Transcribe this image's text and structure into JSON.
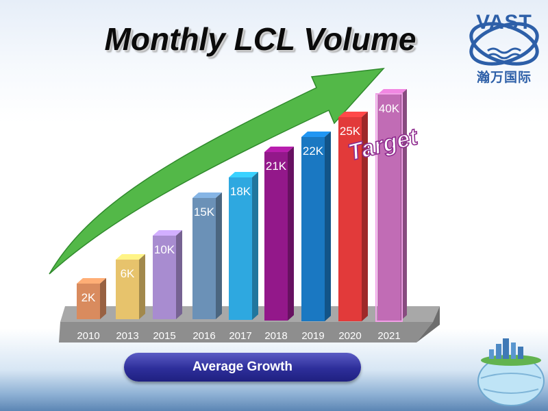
{
  "title": "Monthly LCL Volume",
  "logo": {
    "text": "VAST",
    "subtitle": "瀚万国际"
  },
  "footer_button": "Average Growth",
  "chart_data": {
    "type": "bar",
    "title": "Monthly LCL Volume",
    "categories": [
      "2010",
      "2013",
      "2015",
      "2016",
      "2017",
      "2018",
      "2019",
      "2020",
      "2021"
    ],
    "values": [
      2,
      6,
      10,
      15,
      18,
      21,
      22,
      25,
      40
    ],
    "value_labels": [
      "2K",
      "6K",
      "10K",
      "15K",
      "18K",
      "21K",
      "22K",
      "25K",
      "40K"
    ],
    "unit": "K",
    "annotation": "Target",
    "colors": [
      "#d98b5e",
      "#e7c36c",
      "#a88cd0",
      "#6b91b7",
      "#2ea8e0",
      "#93188a",
      "#1a78c2",
      "#e23a3a",
      "#c16cb5"
    ],
    "grid": false,
    "legend": "none"
  }
}
